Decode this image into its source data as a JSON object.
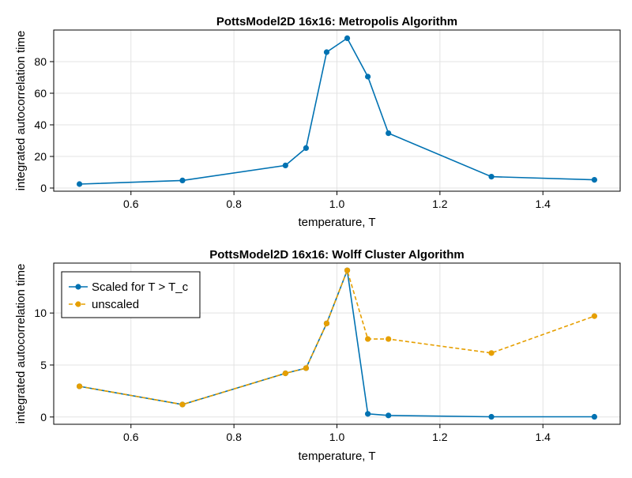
{
  "chart_data": [
    {
      "type": "line",
      "title": "PottsModel2D 16x16:  Metropolis Algorithm",
      "xlabel": "temperature, T",
      "ylabel": "integrated autocorrelation time",
      "xlim": [
        0.45,
        1.55
      ],
      "ylim": [
        -2,
        100
      ],
      "xticks": [
        0.6,
        0.8,
        1.0,
        1.2,
        1.4
      ],
      "xtick_labels": [
        "0.6",
        "0.8",
        "1.0",
        "1.2",
        "1.4"
      ],
      "yticks": [
        0,
        20,
        40,
        60,
        80
      ],
      "ytick_labels": [
        "0",
        "20",
        "40",
        "60",
        "80"
      ],
      "grid": true,
      "series": [
        {
          "color": "#0072b2",
          "dashed": false,
          "x": [
            0.5,
            0.7,
            0.9,
            0.94,
            0.98,
            1.02,
            1.06,
            1.1,
            1.3,
            1.5
          ],
          "y": [
            2.5,
            4.8,
            14.3,
            25.3,
            86.0,
            94.8,
            70.5,
            34.7,
            7.2,
            5.2
          ]
        }
      ]
    },
    {
      "type": "line",
      "title": "PottsModel2D 16x16: Wolff Cluster Algorithm",
      "xlabel": "temperature, T",
      "ylabel": "integrated autocorrelation time",
      "xlim": [
        0.45,
        1.55
      ],
      "ylim": [
        -0.7,
        14.8
      ],
      "xticks": [
        0.6,
        0.8,
        1.0,
        1.2,
        1.4
      ],
      "xtick_labels": [
        "0.6",
        "0.8",
        "1.0",
        "1.2",
        "1.4"
      ],
      "yticks": [
        0,
        5,
        10
      ],
      "ytick_labels": [
        "0",
        "5",
        "10"
      ],
      "grid": true,
      "legend": "top-left",
      "series": [
        {
          "name": "Scaled for T > T_c",
          "color": "#0072b2",
          "dashed": false,
          "x": [
            0.5,
            0.7,
            0.9,
            0.94,
            0.98,
            1.02,
            1.06,
            1.1,
            1.3,
            1.5
          ],
          "y": [
            2.95,
            1.2,
            4.2,
            4.7,
            9.0,
            14.1,
            0.3,
            0.15,
            0.02,
            0.02
          ]
        },
        {
          "name": "unscaled",
          "color": "#e69f00",
          "dashed": true,
          "x": [
            0.5,
            0.7,
            0.9,
            0.94,
            0.98,
            1.02,
            1.06,
            1.1,
            1.3,
            1.5
          ],
          "y": [
            2.95,
            1.2,
            4.2,
            4.7,
            9.0,
            14.1,
            7.5,
            7.5,
            6.15,
            9.7
          ]
        }
      ]
    }
  ]
}
